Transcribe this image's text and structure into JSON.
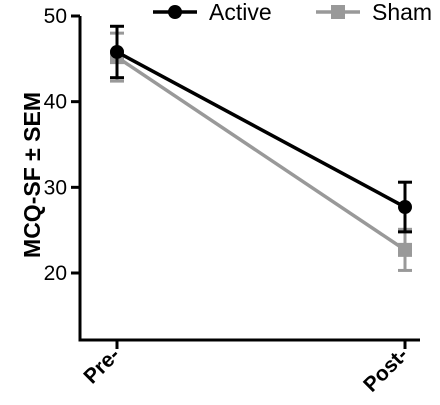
{
  "chart_data": {
    "type": "line",
    "categories": [
      "Pre-",
      "Post-"
    ],
    "ylabel": "MCQ-SF ± SEM",
    "ylim": [
      15,
      50
    ],
    "yticks": [
      20,
      30,
      40,
      50
    ],
    "grid": false,
    "legend_position": "top",
    "series": [
      {
        "name": "Active",
        "color": "#000000",
        "marker": "circle",
        "values": [
          45.8,
          27.7
        ],
        "sem": [
          3.0,
          2.9
        ]
      },
      {
        "name": "Sham",
        "color": "#999999",
        "marker": "square",
        "values": [
          45.2,
          22.7
        ],
        "sem": [
          2.8,
          2.4
        ]
      }
    ]
  }
}
